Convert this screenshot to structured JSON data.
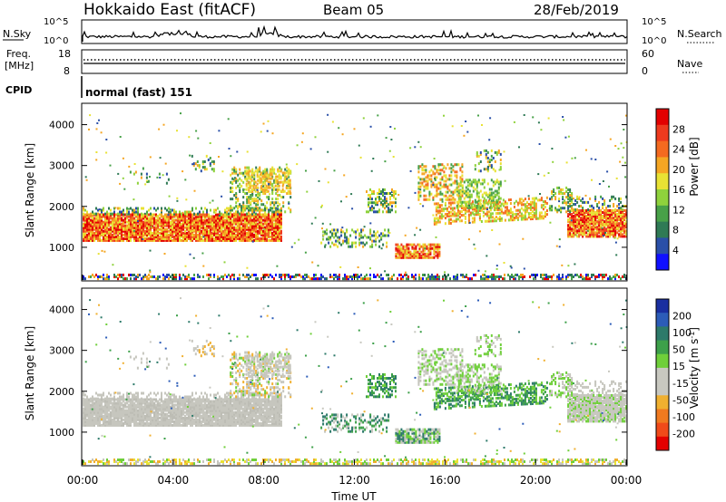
{
  "header": {
    "station": "Hokkaido East (fitACF)",
    "beam": "Beam 05",
    "date": "28/Feb/2019"
  },
  "top_panels": {
    "nsky_label": "N.Sky",
    "nsky_ticks": [
      "10^5",
      "10^0"
    ],
    "nsearch_label": "N.Search",
    "freq_label_1": "Freq.",
    "freq_label_2": "[MHz]",
    "freq_ticks": [
      "18",
      "8"
    ],
    "nave_label": "Nave",
    "nave_ticks": [
      "60",
      "0"
    ],
    "cpid_label": "CPID",
    "cpid_value": "normal (fast) 151"
  },
  "chart_data": [
    {
      "type": "heatmap",
      "name": "power",
      "xlabel": "Time UT",
      "ylabel": "Slant Range [km]",
      "x_ticks": [
        "00:00",
        "04:00",
        "08:00",
        "12:00",
        "16:00",
        "20:00",
        "00:00"
      ],
      "y_ticks": [
        "1000",
        "2000",
        "3000",
        "4000"
      ],
      "ylim": [
        200,
        4500
      ],
      "colorbar_label": "Power [dB]",
      "colorbar_ticks": [
        "4",
        "8",
        "12",
        "16",
        "20",
        "24",
        "28"
      ],
      "colorbar_colors": [
        "#1010ff",
        "#2a4fa8",
        "#2f7a55",
        "#48a148",
        "#8fd23c",
        "#e8e234",
        "#f5a623",
        "#f46a20",
        "#ee3a1e",
        "#e30000"
      ],
      "features": [
        {
          "t_start": 0.0,
          "t_end": 9.0,
          "range_lo": 1150,
          "range_hi": 1850,
          "value": "26-30 dB"
        },
        {
          "t_start": 14.0,
          "t_end": 15.8,
          "range_lo": 800,
          "range_hi": 1100,
          "value": "22-28 dB"
        },
        {
          "t_start": 21.5,
          "t_end": 24.0,
          "range_lo": 1300,
          "range_hi": 1950,
          "value": "24-30 dB"
        }
      ]
    },
    {
      "type": "heatmap",
      "name": "velocity",
      "xlabel": "Time UT",
      "ylabel": "Slant Range [km]",
      "x_ticks": [
        "00:00",
        "04:00",
        "08:00",
        "12:00",
        "16:00",
        "20:00",
        "00:00"
      ],
      "y_ticks": [
        "1000",
        "2000",
        "3000",
        "4000"
      ],
      "ylim": [
        200,
        4500
      ],
      "colorbar_label": "Velocity [m s",
      "colorbar_label_sup": "-1",
      "colorbar_label_end": "]",
      "colorbar_ticks": [
        "200",
        "100",
        "50",
        "15",
        "-15",
        "-50",
        "-100",
        "-200"
      ],
      "colorbar_colors": [
        "#1a2fa0",
        "#2c5cb8",
        "#2d7a6a",
        "#3da04a",
        "#6fcf3a",
        "#c8c8c0",
        "#c8c8c0",
        "#f0b030",
        "#f07a20",
        "#f04a1a",
        "#e30000"
      ],
      "features": [
        {
          "t_start": 0.0,
          "t_end": 9.0,
          "range_lo": 1150,
          "range_hi": 1850,
          "value": "ground scatter ~0 m/s"
        },
        {
          "t_start": 21.5,
          "t_end": 24.0,
          "range_lo": 1300,
          "range_hi": 1950,
          "value": "ground scatter ~0 m/s"
        }
      ]
    }
  ],
  "colors": {
    "axis": "#000000",
    "background": "#ffffff"
  }
}
